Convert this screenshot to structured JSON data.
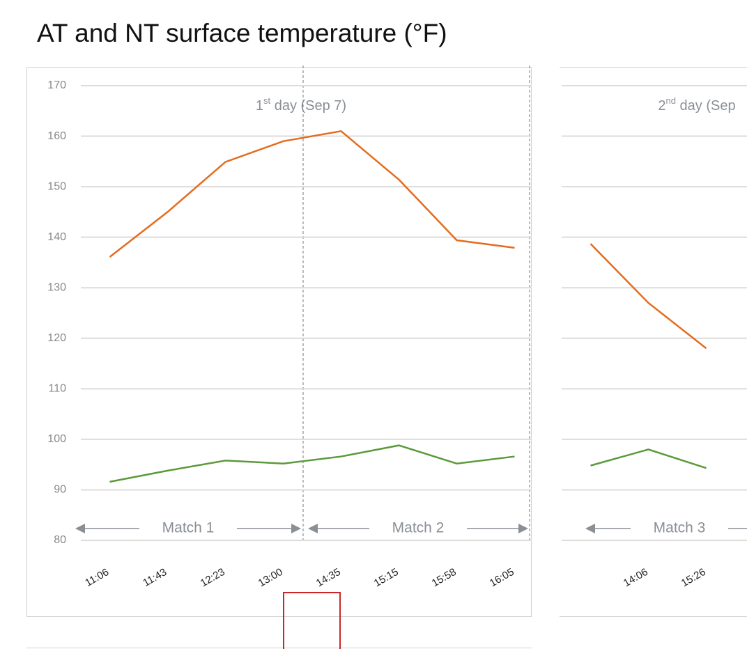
{
  "chart_data": [
    {
      "type": "line",
      "title": "AT and NT surface temperature (°F)",
      "categories": [
        "11:06",
        "11:43",
        "12:23",
        "13:00",
        "14:35",
        "15:15",
        "15:58",
        "16:05"
      ],
      "series": [
        {
          "color": "#e46c1f",
          "values": [
            136.1,
            145,
            154.9,
            159,
            161,
            151.4,
            139.4,
            137.9
          ]
        },
        {
          "color": "#5a9a3a",
          "values": [
            91.6,
            93.8,
            95.8,
            95.2,
            96.6,
            98.8,
            95.2,
            96.6
          ]
        }
      ],
      "ylim": [
        80,
        170
      ],
      "yticks": [
        80,
        90,
        100,
        110,
        120,
        130,
        140,
        150,
        160,
        170
      ],
      "grid": true,
      "show_ytick_labels": true,
      "day_label": {
        "ordinal": "1",
        "suffix": "st",
        "rest": " day (Sep 7)"
      },
      "matches": [
        "Match 1",
        "Match 2"
      ]
    },
    {
      "type": "line",
      "categories": [
        null,
        "14:06",
        "15:26"
      ],
      "series": [
        {
          "color": "#e46c1f",
          "values": [
            138.7,
            127,
            118
          ]
        },
        {
          "color": "#5a9a3a",
          "values": [
            94.8,
            98,
            94.3
          ]
        }
      ],
      "ylim": [
        80,
        170
      ],
      "yticks": [
        80,
        90,
        100,
        110,
        120,
        130,
        140,
        150,
        160,
        170
      ],
      "grid": true,
      "show_ytick_labels": false,
      "day_label": {
        "ordinal": "2",
        "suffix": "nd",
        "rest": " day (Sep"
      },
      "matches": [
        "Match 3"
      ]
    }
  ]
}
